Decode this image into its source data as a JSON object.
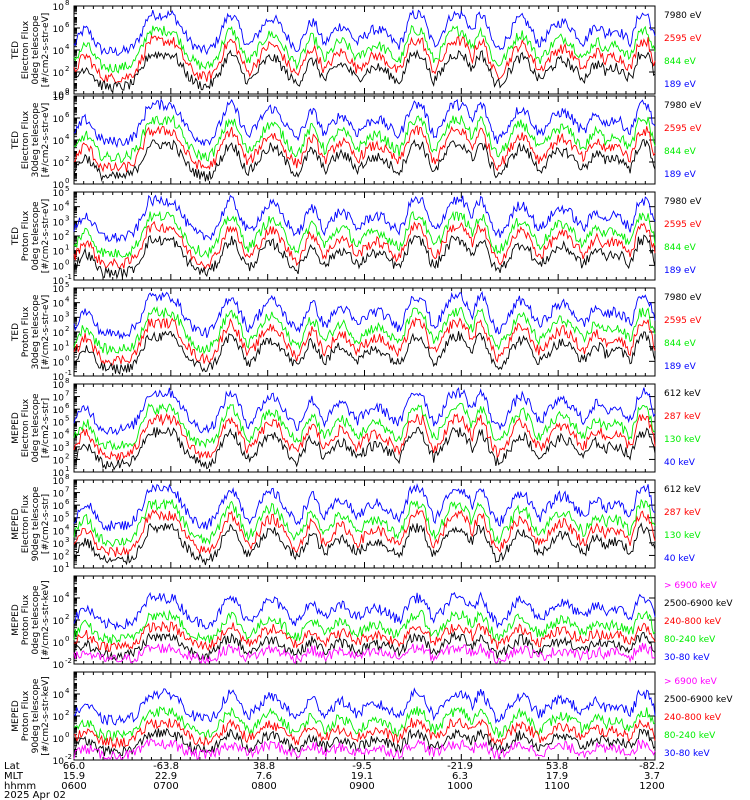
{
  "colors": {
    "blue": "#0000ff",
    "red": "#ff0000",
    "green": "#00ee00",
    "black": "#000000",
    "magenta": "#ff00ff"
  },
  "time_axis": {
    "row_labels": [
      "Lat",
      "MLT",
      "hhmm"
    ],
    "ticks": [
      {
        "lat": "66.0",
        "mlt": "15.9",
        "hhmm": "0600"
      },
      {
        "lat": "-63.8",
        "mlt": "22.9",
        "hhmm": "0700"
      },
      {
        "lat": "38.8",
        "mlt": "7.6",
        "hhmm": "0800"
      },
      {
        "lat": "-9.5",
        "mlt": "19.1",
        "hhmm": "0900"
      },
      {
        "lat": "-21.9",
        "mlt": "6.3",
        "hhmm": "1000"
      },
      {
        "lat": "53.8",
        "mlt": "17.9",
        "hhmm": "1100"
      },
      {
        "lat": "-82.2",
        "mlt": "3.7",
        "hhmm": "1200"
      }
    ],
    "date": "2025 Apr 02"
  },
  "chart_data": [
    {
      "type": "line",
      "instrument": "TED",
      "ylabel": [
        "TED",
        "Electron Flux",
        "0deg telescope",
        "[#/cm2-s-str-eV]"
      ],
      "ylim": [
        1,
        100000000
      ],
      "yscale": "log",
      "yticks": [
        {
          "base": "10",
          "exp": "0"
        },
        {
          "base": "10",
          "exp": "2"
        },
        {
          "base": "10",
          "exp": "4"
        },
        {
          "base": "10",
          "exp": "6"
        },
        {
          "base": "10",
          "exp": "8"
        }
      ],
      "series": [
        {
          "name": "7980 eV",
          "color": "black"
        },
        {
          "name": "2595 eV",
          "color": "red"
        },
        {
          "name": "844 eV",
          "color": "green"
        },
        {
          "name": "189 eV",
          "color": "blue"
        }
      ]
    },
    {
      "type": "line",
      "instrument": "TED",
      "ylabel": [
        "TED",
        "Electron Flux",
        "30deg telescope",
        "[#/cm2-s-str-eV]"
      ],
      "ylim": [
        1,
        100000000
      ],
      "yscale": "log",
      "yticks": [
        {
          "base": "10",
          "exp": "0"
        },
        {
          "base": "10",
          "exp": "2"
        },
        {
          "base": "10",
          "exp": "4"
        },
        {
          "base": "10",
          "exp": "6"
        },
        {
          "base": "10",
          "exp": "8"
        }
      ],
      "series": [
        {
          "name": "7980 eV",
          "color": "black"
        },
        {
          "name": "2595 eV",
          "color": "red"
        },
        {
          "name": "844 eV",
          "color": "green"
        },
        {
          "name": "189 eV",
          "color": "blue"
        }
      ]
    },
    {
      "type": "line",
      "instrument": "TED",
      "ylabel": [
        "TED",
        "Proton Flux",
        "0deg telescope",
        "[#/cm2-s-str-eV]"
      ],
      "ylim": [
        0.1,
        100000
      ],
      "yscale": "log",
      "yticks": [
        {
          "base": "10",
          "exp": "-1"
        },
        {
          "base": "10",
          "exp": "0"
        },
        {
          "base": "10",
          "exp": "1"
        },
        {
          "base": "10",
          "exp": "2"
        },
        {
          "base": "10",
          "exp": "3"
        },
        {
          "base": "10",
          "exp": "4"
        },
        {
          "base": "10",
          "exp": "5"
        }
      ],
      "series": [
        {
          "name": "7980 eV",
          "color": "black"
        },
        {
          "name": "2595 eV",
          "color": "red"
        },
        {
          "name": "844 eV",
          "color": "green"
        },
        {
          "name": "189 eV",
          "color": "blue"
        }
      ]
    },
    {
      "type": "line",
      "instrument": "TED",
      "ylabel": [
        "TED",
        "Proton Flux",
        "30deg telescope",
        "[#/cm2-s-str-eV]"
      ],
      "ylim": [
        0.1,
        100000
      ],
      "yscale": "log",
      "yticks": [
        {
          "base": "10",
          "exp": "-1"
        },
        {
          "base": "10",
          "exp": "0"
        },
        {
          "base": "10",
          "exp": "1"
        },
        {
          "base": "10",
          "exp": "2"
        },
        {
          "base": "10",
          "exp": "3"
        },
        {
          "base": "10",
          "exp": "4"
        },
        {
          "base": "10",
          "exp": "5"
        }
      ],
      "series": [
        {
          "name": "7980 eV",
          "color": "black"
        },
        {
          "name": "2595 eV",
          "color": "red"
        },
        {
          "name": "844 eV",
          "color": "green"
        },
        {
          "name": "189 eV",
          "color": "blue"
        }
      ]
    },
    {
      "type": "line",
      "instrument": "MEPED",
      "ylabel": [
        "MEPED",
        "Electron Flux",
        "0deg telescope",
        "[#/cm2-s-str]"
      ],
      "ylim": [
        10,
        100000000
      ],
      "yscale": "log",
      "yticks": [
        {
          "base": "10",
          "exp": "1"
        },
        {
          "base": "10",
          "exp": "2"
        },
        {
          "base": "10",
          "exp": "3"
        },
        {
          "base": "10",
          "exp": "4"
        },
        {
          "base": "10",
          "exp": "5"
        },
        {
          "base": "10",
          "exp": "6"
        },
        {
          "base": "10",
          "exp": "7"
        },
        {
          "base": "10",
          "exp": "8"
        }
      ],
      "series": [
        {
          "name": "612 keV",
          "color": "black"
        },
        {
          "name": "287 keV",
          "color": "red"
        },
        {
          "name": "130 keV",
          "color": "green"
        },
        {
          "name": "40 keV",
          "color": "blue"
        }
      ]
    },
    {
      "type": "line",
      "instrument": "MEPED",
      "ylabel": [
        "MEPED",
        "Electron Flux",
        "90deg telescope",
        "[#/cm2-s-str]"
      ],
      "ylim": [
        10,
        100000000
      ],
      "yscale": "log",
      "yticks": [
        {
          "base": "10",
          "exp": "1"
        },
        {
          "base": "10",
          "exp": "2"
        },
        {
          "base": "10",
          "exp": "3"
        },
        {
          "base": "10",
          "exp": "4"
        },
        {
          "base": "10",
          "exp": "5"
        },
        {
          "base": "10",
          "exp": "6"
        },
        {
          "base": "10",
          "exp": "7"
        },
        {
          "base": "10",
          "exp": "8"
        }
      ],
      "series": [
        {
          "name": "612 keV",
          "color": "black"
        },
        {
          "name": "287 keV",
          "color": "red"
        },
        {
          "name": "130 keV",
          "color": "green"
        },
        {
          "name": "40 keV",
          "color": "blue"
        }
      ]
    },
    {
      "type": "line",
      "instrument": "MEPED",
      "ylabel": [
        "MEPED",
        "Proton Flux",
        "0deg telescope",
        "[#/cm2-s-str-keV]"
      ],
      "ylim": [
        0.01,
        1000000
      ],
      "yscale": "log",
      "yticks": [
        {
          "base": "10",
          "exp": "-2"
        },
        {
          "base": "10",
          "exp": "0"
        },
        {
          "base": "10",
          "exp": "2"
        },
        {
          "base": "10",
          "exp": "4"
        }
      ],
      "series": [
        {
          "name": "> 6900 keV",
          "color": "magenta"
        },
        {
          "name": "2500-6900 keV",
          "color": "black"
        },
        {
          "name": "240-800 keV",
          "color": "red"
        },
        {
          "name": "80-240 keV",
          "color": "green"
        },
        {
          "name": "30-80 keV",
          "color": "blue"
        }
      ]
    },
    {
      "type": "line",
      "instrument": "MEPED",
      "ylabel": [
        "MEPED",
        "Proton Flux",
        "90deg telescope",
        "[#/cm2-s-str-keV]"
      ],
      "ylim": [
        0.01,
        1000000
      ],
      "yscale": "log",
      "yticks": [
        {
          "base": "10",
          "exp": "-2"
        },
        {
          "base": "10",
          "exp": "0"
        },
        {
          "base": "10",
          "exp": "2"
        },
        {
          "base": "10",
          "exp": "4"
        }
      ],
      "series": [
        {
          "name": "> 6900 keV",
          "color": "magenta"
        },
        {
          "name": "2500-6900 keV",
          "color": "black"
        },
        {
          "name": "240-800 keV",
          "color": "red"
        },
        {
          "name": "80-240 keV",
          "color": "green"
        },
        {
          "name": "30-80 keV",
          "color": "blue"
        }
      ]
    }
  ]
}
